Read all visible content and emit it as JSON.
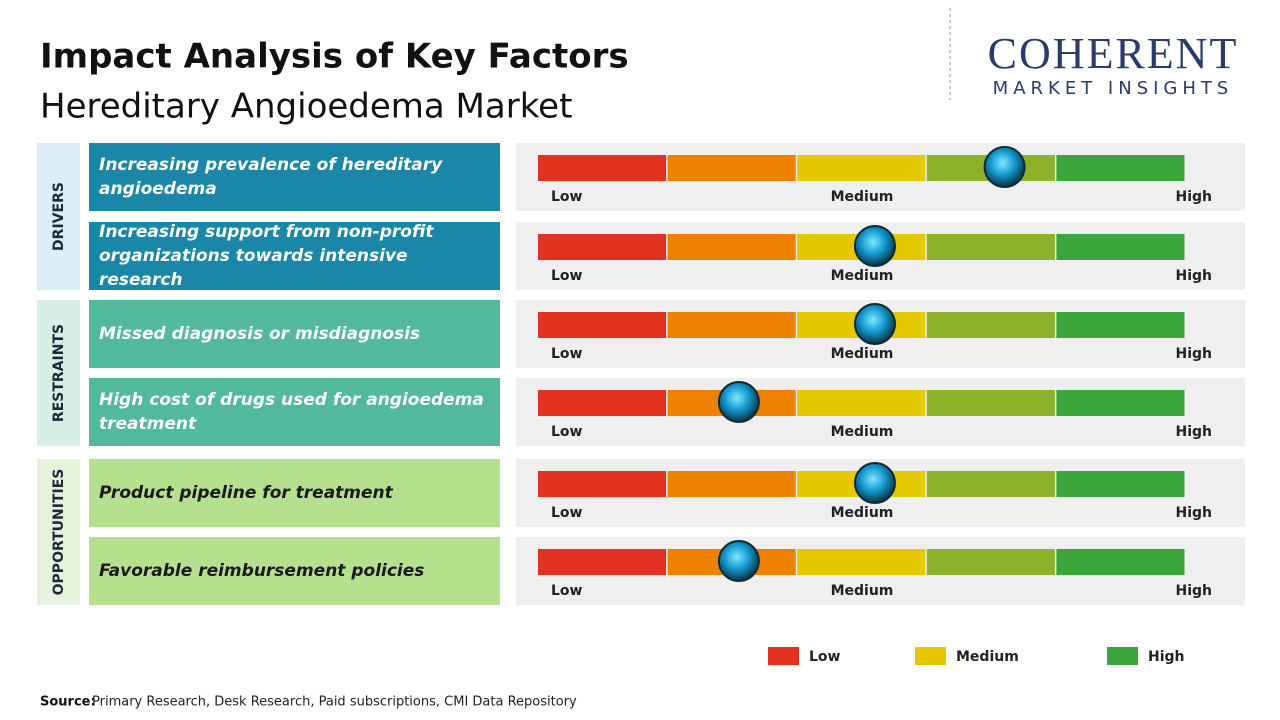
{
  "header": {
    "title": "Impact Analysis of Key Factors",
    "subtitle": "Hereditary Angioedema Market"
  },
  "logo": {
    "name": "COHERENT",
    "tagline": "MARKET INSIGHTS"
  },
  "scale": {
    "labels": [
      "Low",
      "Medium",
      "High"
    ],
    "segment_colors": [
      "#e0321f",
      "#ee8200",
      "#e6c800",
      "#8db22a",
      "#3aa63a"
    ]
  },
  "groups": [
    {
      "label": "DRIVERS",
      "color": "#1a86a8",
      "label_bg": "#dcedf5",
      "text_color": "#ffffff",
      "factors": [
        {
          "text": "Increasing prevalence of hereditary angioedema",
          "impact": 0.72
        },
        {
          "text": "Increasing support from non-profit organizations towards intensive research",
          "impact": 0.52
        }
      ]
    },
    {
      "label": "RESTRAINTS",
      "color": "#52b99a",
      "label_bg": "#d8efe8",
      "text_color": "#ffffff",
      "factors": [
        {
          "text": "Missed diagnosis or misdiagnosis",
          "impact": 0.52
        },
        {
          "text": "High cost of drugs used for angioedema treatment",
          "impact": 0.31
        }
      ]
    },
    {
      "label": "OPPORTUNITIES",
      "color": "#b5e08e",
      "label_bg": "#e6f3dc",
      "text_color": "#1a1a1a",
      "factors": [
        {
          "text": "Product pipeline for treatment",
          "impact": 0.52
        },
        {
          "text": "Favorable reimbursement policies",
          "impact": 0.31
        }
      ]
    }
  ],
  "legend": [
    {
      "label": "Low",
      "color": "#e0321f"
    },
    {
      "label": "Medium",
      "color": "#e6c800"
    },
    {
      "label": "High",
      "color": "#3aa63a"
    }
  ],
  "source": {
    "label": "Source:",
    "text": "Primary Research, Desk Research, Paid subscriptions, CMI Data Repository"
  }
}
